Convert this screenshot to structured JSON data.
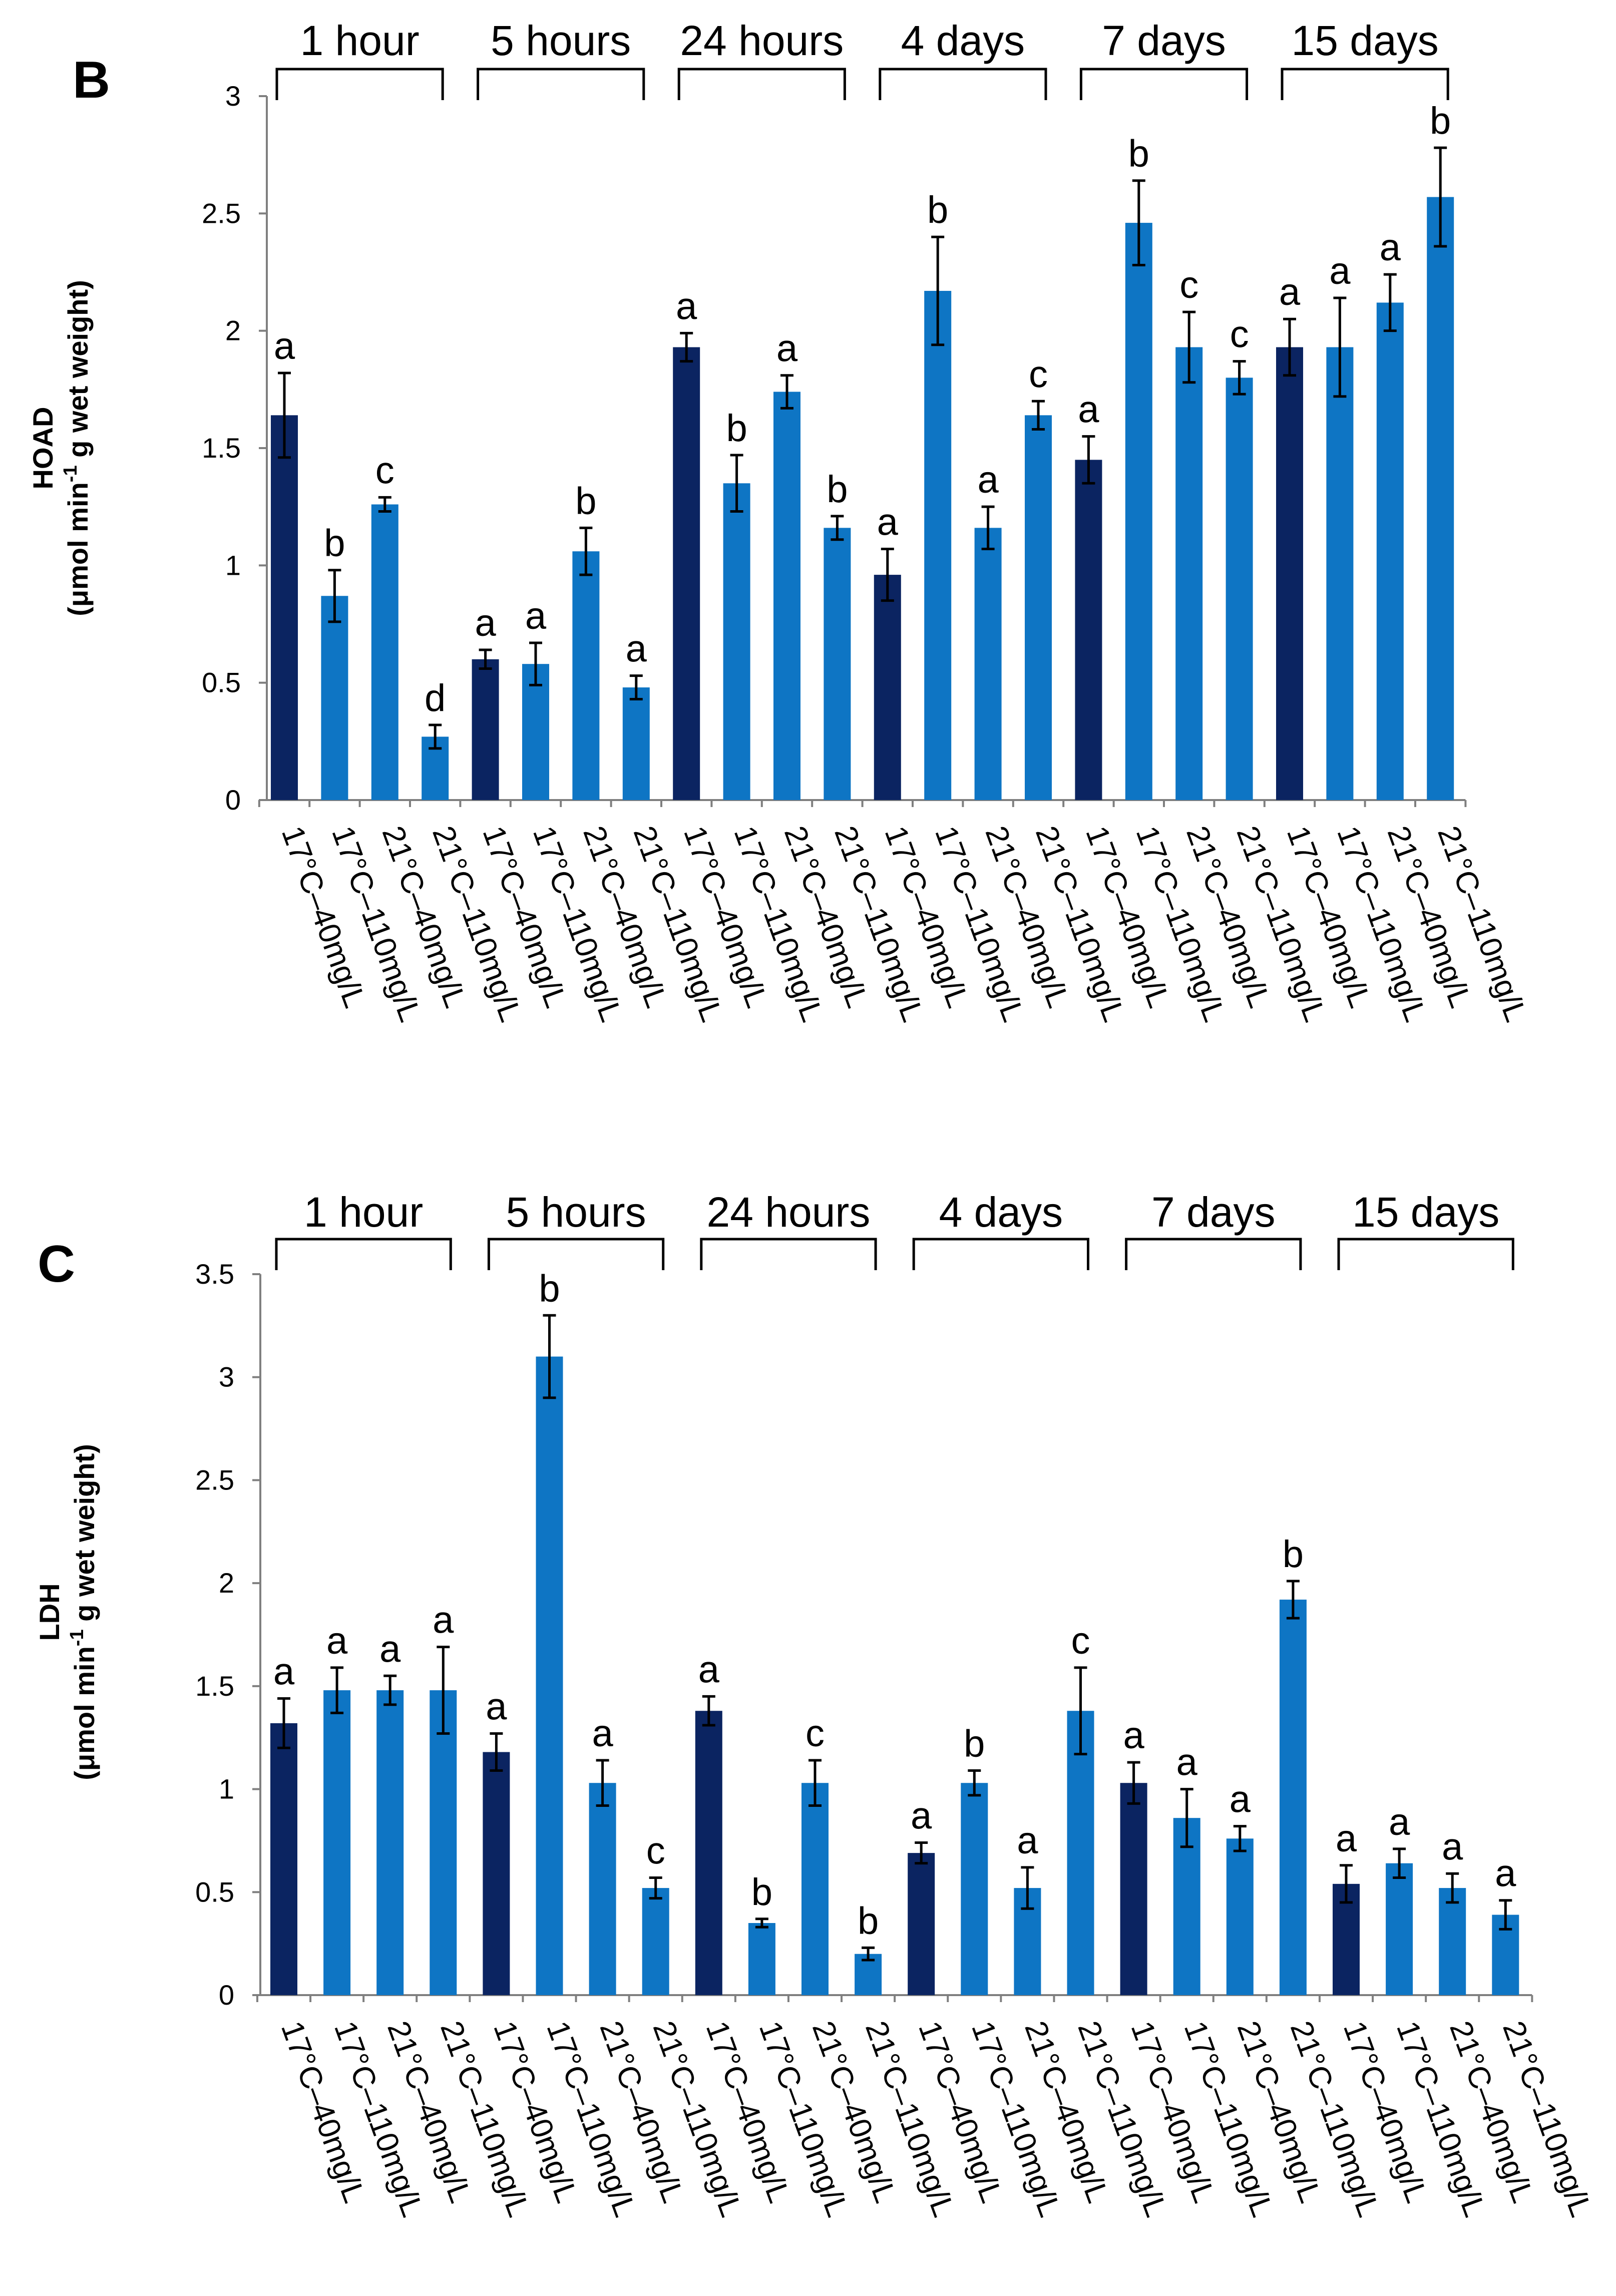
{
  "chart_data": [
    {
      "type": "bar",
      "panel": "B",
      "ylabel_line1": "HOAD",
      "ylabel_line2_pre": "(μmol min",
      "ylabel_line2_sup": "-1",
      "ylabel_line2_post": " g wet weight)",
      "ylim": [
        0,
        3
      ],
      "yticks": [
        0,
        0.5,
        1,
        1.5,
        2,
        2.5,
        3
      ],
      "ytick_labels": [
        "0",
        "0.5",
        "1",
        "1.5",
        "2",
        "2.5",
        "3"
      ],
      "groups": [
        "1 hour",
        "5 hours",
        "24 hours",
        "4 days",
        "7 days",
        "15 days"
      ],
      "categories": [
        "17°C–40mg/L",
        "17°C–110mg/L",
        "21°C–40mg/L",
        "21°C–110mg/L"
      ],
      "values": [
        [
          1.64,
          0.87,
          1.26,
          0.27
        ],
        [
          0.6,
          0.58,
          1.06,
          0.48
        ],
        [
          1.93,
          1.35,
          1.74,
          1.16
        ],
        [
          0.96,
          2.17,
          1.16,
          1.64
        ],
        [
          1.45,
          2.46,
          1.93,
          1.8
        ],
        [
          1.93,
          1.93,
          2.12,
          2.57
        ]
      ],
      "errors": [
        [
          0.18,
          0.11,
          0.03,
          0.05
        ],
        [
          0.04,
          0.09,
          0.1,
          0.05
        ],
        [
          0.06,
          0.12,
          0.07,
          0.05
        ],
        [
          0.11,
          0.23,
          0.09,
          0.06
        ],
        [
          0.1,
          0.18,
          0.15,
          0.07
        ],
        [
          0.12,
          0.21,
          0.12,
          0.21
        ]
      ],
      "letters": [
        [
          "a",
          "b",
          "c",
          "d"
        ],
        [
          "a",
          "a",
          "b",
          "a"
        ],
        [
          "a",
          "b",
          "a",
          "b"
        ],
        [
          "a",
          "b",
          "a",
          "c"
        ],
        [
          "a",
          "b",
          "c",
          "c"
        ],
        [
          "a",
          "a",
          "a",
          "b"
        ]
      ]
    },
    {
      "type": "bar",
      "panel": "C",
      "ylabel_line1": "LDH",
      "ylabel_line2_pre": "(μmol min",
      "ylabel_line2_sup": "-1",
      "ylabel_line2_post": " g wet weight)",
      "ylim": [
        0,
        3.5
      ],
      "yticks": [
        0,
        0.5,
        1,
        1.5,
        2,
        2.5,
        3,
        3.5
      ],
      "ytick_labels": [
        "0",
        "0.5",
        "1",
        "1.5",
        "2",
        "2.5",
        "3",
        "3.5"
      ],
      "groups": [
        "1 hour",
        "5 hours",
        "24 hours",
        "4 days",
        "7 days",
        "15 days"
      ],
      "categories": [
        "17°C–40mg/L",
        "17°C–110mg/L",
        "21°C–40mg/L",
        "21°C–110mg/L"
      ],
      "values": [
        [
          1.32,
          1.48,
          1.48,
          1.48
        ],
        [
          1.18,
          3.1,
          1.03,
          0.52
        ],
        [
          1.38,
          0.35,
          1.03,
          0.2
        ],
        [
          0.69,
          1.03,
          0.52,
          1.38
        ],
        [
          1.03,
          0.86,
          0.76,
          1.92
        ],
        [
          0.54,
          0.64,
          0.52,
          0.39
        ]
      ],
      "errors": [
        [
          0.12,
          0.11,
          0.07,
          0.21
        ],
        [
          0.09,
          0.2,
          0.11,
          0.05
        ],
        [
          0.07,
          0.02,
          0.11,
          0.03
        ],
        [
          0.05,
          0.06,
          0.1,
          0.21
        ],
        [
          0.1,
          0.14,
          0.06,
          0.09
        ],
        [
          0.09,
          0.07,
          0.07,
          0.07
        ]
      ],
      "letters": [
        [
          "a",
          "a",
          "a",
          "a"
        ],
        [
          "a",
          "b",
          "a",
          "c"
        ],
        [
          "a",
          "b",
          "c",
          "b"
        ],
        [
          "a",
          "b",
          "a",
          "c"
        ],
        [
          "a",
          "a",
          "a",
          "b"
        ],
        [
          "a",
          "a",
          "a",
          "a"
        ]
      ]
    }
  ],
  "colors": {
    "first_bar": "#0B2461",
    "other_bars": "#0E75C4",
    "axis": "#7F7F7F",
    "error_bar": "#000000",
    "text": "#000000"
  }
}
